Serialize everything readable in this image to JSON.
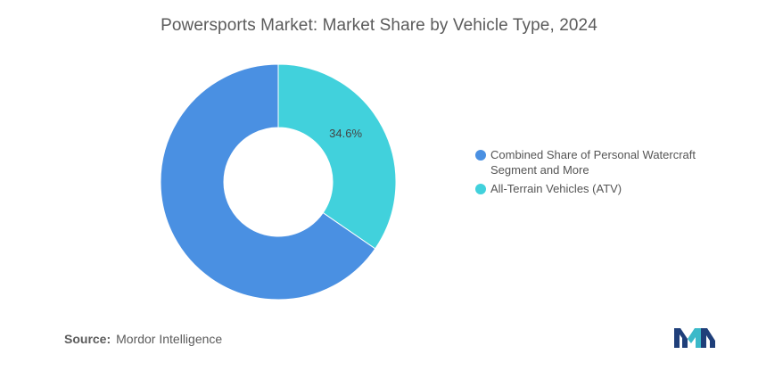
{
  "chart_data": {
    "type": "pie",
    "title": "Powersports Market: Market Share by Vehicle Type, 2024",
    "donut": true,
    "slices": [
      {
        "label": "Combined Share of Personal Watercraft Segment and More",
        "value": 65.4,
        "color": "#4a90e2"
      },
      {
        "label": "All-Terrain Vehicles (ATV)",
        "value": 34.6,
        "color": "#41d1dc"
      }
    ],
    "data_labels": [
      "",
      "34.6%"
    ],
    "legend_position": "right"
  },
  "source": {
    "label": "Source:",
    "value": "Mordor Intelligence"
  },
  "logo": {
    "icon": "mordor-intelligence-logo",
    "colors": [
      "#1f3f7a",
      "#3bb9c9"
    ]
  }
}
